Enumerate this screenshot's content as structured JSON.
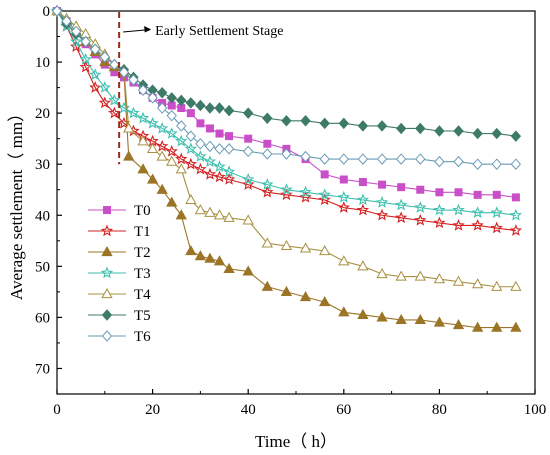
{
  "chart_data": {
    "type": "line",
    "xlabel": "Time（ h）",
    "ylabel": "Average settlement（ mm）",
    "xlim": [
      0,
      100
    ],
    "ylim": [
      0,
      75
    ],
    "y_inverted": true,
    "xticks": [
      0,
      20,
      40,
      60,
      80,
      100
    ],
    "yticks": [
      0,
      10,
      20,
      30,
      40,
      50,
      60,
      70
    ],
    "grid": false,
    "legend_position": "left",
    "annotation": {
      "text": "Early Settlement Stage",
      "x": 13
    },
    "series": [
      {
        "name": "T0",
        "color": "#c94fc8",
        "marker": "square",
        "x": [
          0,
          2,
          4,
          6,
          8,
          10,
          12,
          14,
          16,
          18,
          20,
          22,
          24,
          26,
          28,
          30,
          32,
          34,
          36,
          40,
          44,
          48,
          52,
          56,
          60,
          64,
          68,
          72,
          76,
          80,
          84,
          88,
          92,
          96
        ],
        "y": [
          0,
          2,
          4,
          6.5,
          8.5,
          10.5,
          12,
          13,
          14,
          15.5,
          17,
          18,
          18.5,
          19,
          20,
          22,
          23,
          24,
          24.5,
          25,
          26,
          27,
          29,
          32,
          33,
          33.5,
          34,
          34.5,
          35,
          35.5,
          35.5,
          36,
          36,
          36.5
        ]
      },
      {
        "name": "T1",
        "color": "#d42020",
        "marker": "star",
        "x": [
          0,
          2,
          4,
          6,
          8,
          10,
          12,
          14,
          16,
          18,
          20,
          22,
          24,
          26,
          28,
          30,
          32,
          34,
          36,
          40,
          44,
          48,
          52,
          56,
          60,
          64,
          68,
          72,
          76,
          80,
          84,
          88,
          92,
          96
        ],
        "y": [
          0,
          3,
          7,
          11,
          15,
          18,
          20,
          22,
          23.5,
          24.5,
          25.5,
          26.5,
          27.5,
          29,
          30,
          31,
          32,
          32.5,
          33,
          34,
          35.5,
          36,
          36.5,
          37,
          38.5,
          39,
          40,
          40.5,
          41,
          41.5,
          42,
          42,
          42.5,
          43
        ]
      },
      {
        "name": "T2",
        "color": "#9b7426",
        "marker": "triangle",
        "x": [
          0,
          2,
          4,
          6,
          8,
          10,
          12,
          14,
          15,
          18,
          20,
          22,
          24,
          26,
          28,
          30,
          32,
          34,
          36,
          40,
          44,
          48,
          52,
          56,
          60,
          64,
          68,
          72,
          76,
          80,
          84,
          88,
          92,
          96
        ],
        "y": [
          0,
          2,
          4,
          6,
          8,
          10,
          11,
          12,
          28.5,
          31,
          33,
          35,
          37.5,
          40,
          47,
          48,
          48.5,
          49,
          50.5,
          51,
          54,
          55,
          56,
          57,
          59,
          59.5,
          60,
          60.5,
          60.5,
          61,
          61.5,
          62,
          62,
          62
        ]
      },
      {
        "name": "T3",
        "color": "#3fbfae",
        "marker": "star",
        "x": [
          0,
          2,
          4,
          6,
          8,
          10,
          12,
          14,
          16,
          18,
          20,
          22,
          24,
          26,
          28,
          30,
          32,
          34,
          36,
          40,
          44,
          48,
          52,
          56,
          60,
          64,
          68,
          72,
          76,
          80,
          84,
          88,
          92,
          96
        ],
        "y": [
          0,
          3,
          6,
          9.5,
          12.5,
          15,
          17.5,
          19,
          20,
          21,
          22,
          23,
          24,
          25.5,
          27,
          28.5,
          29.5,
          30.5,
          31.5,
          33,
          34,
          35,
          35.5,
          36,
          36.5,
          37,
          37.5,
          38,
          38.5,
          39,
          39,
          39.5,
          39.5,
          40
        ]
      },
      {
        "name": "T4",
        "color": "#a89040",
        "marker": "triangle-open",
        "x": [
          0,
          2,
          4,
          6,
          8,
          10,
          12,
          14,
          15,
          18,
          20,
          22,
          24,
          26,
          28,
          30,
          32,
          34,
          36,
          40,
          44,
          48,
          52,
          56,
          60,
          64,
          68,
          72,
          76,
          80,
          84,
          88,
          92,
          96
        ],
        "y": [
          0,
          1.5,
          3,
          4.5,
          6.5,
          8.5,
          10.5,
          11.5,
          23,
          25.5,
          27,
          28.5,
          29.5,
          31,
          37,
          39,
          39.5,
          40,
          40.5,
          41,
          45.5,
          46,
          46.5,
          47,
          49,
          50,
          51.5,
          52,
          52,
          52.5,
          53,
          53.5,
          54,
          54
        ]
      },
      {
        "name": "T5",
        "color": "#3d7a68",
        "marker": "diamond",
        "x": [
          0,
          2,
          4,
          6,
          8,
          10,
          12,
          14,
          16,
          18,
          20,
          22,
          24,
          26,
          28,
          30,
          32,
          34,
          36,
          40,
          44,
          48,
          52,
          56,
          60,
          64,
          68,
          72,
          76,
          80,
          84,
          88,
          92,
          96
        ],
        "y": [
          0,
          2.5,
          4.5,
          6,
          7.5,
          9,
          10.5,
          11.5,
          13,
          14.5,
          15.5,
          16,
          17,
          17.5,
          18,
          18.5,
          19,
          19,
          19.5,
          20,
          21,
          21.5,
          21.5,
          22,
          22,
          22.5,
          22.5,
          23,
          23,
          23.5,
          23.5,
          24,
          24,
          24.5
        ]
      },
      {
        "name": "T6",
        "color": "#6a9bb5",
        "marker": "diamond-open",
        "x": [
          0,
          2,
          4,
          6,
          8,
          10,
          12,
          14,
          16,
          18,
          20,
          22,
          24,
          26,
          28,
          30,
          32,
          34,
          36,
          40,
          44,
          48,
          52,
          56,
          60,
          64,
          68,
          72,
          76,
          80,
          84,
          88,
          92,
          96
        ],
        "y": [
          0,
          2,
          4,
          6,
          7.5,
          9,
          10.5,
          12,
          13.5,
          15.5,
          17,
          19,
          20.5,
          22.5,
          24.5,
          26,
          26.5,
          27,
          27,
          27.5,
          28,
          28,
          28.5,
          29,
          29,
          29,
          29,
          29,
          29,
          29.5,
          29.5,
          30,
          30,
          30
        ]
      }
    ]
  }
}
